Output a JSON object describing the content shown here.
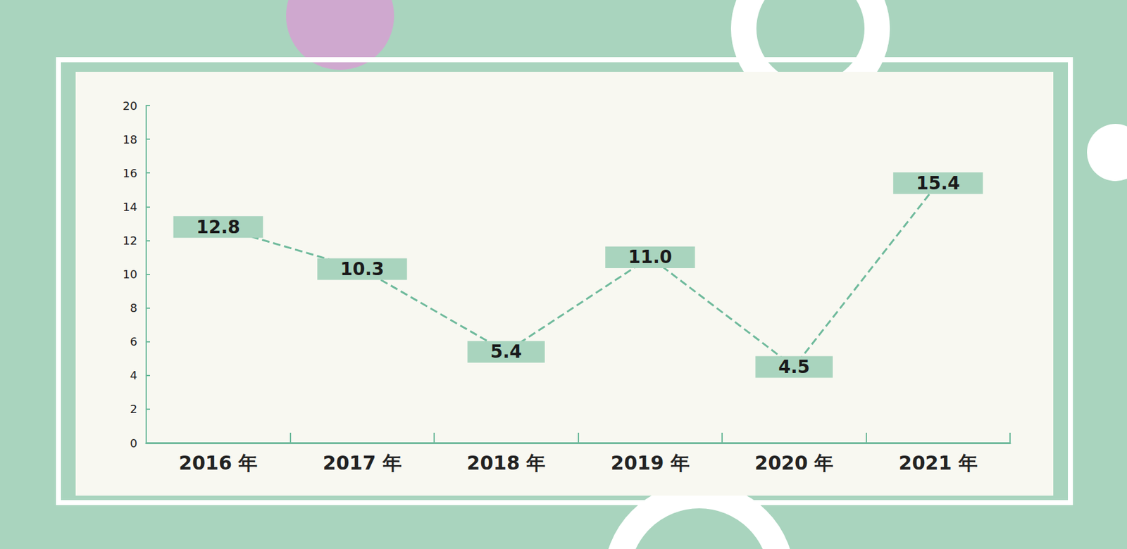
{
  "chart_data": {
    "type": "line",
    "categories": [
      "2016 年",
      "2017 年",
      "2018 年",
      "2019 年",
      "2020 年",
      "2021 年"
    ],
    "values": [
      12.8,
      10.3,
      5.4,
      11.0,
      4.5,
      15.4
    ],
    "value_labels": [
      "12.8",
      "10.3",
      "5.4",
      "11.0",
      "4.5",
      "15.4"
    ],
    "ylim": [
      0,
      20
    ],
    "yticks": [
      0,
      2,
      4,
      6,
      8,
      10,
      12,
      14,
      16,
      18,
      20
    ],
    "grid": false,
    "data_labels": true,
    "color": "#6fba9c",
    "line_style": "dashed"
  }
}
